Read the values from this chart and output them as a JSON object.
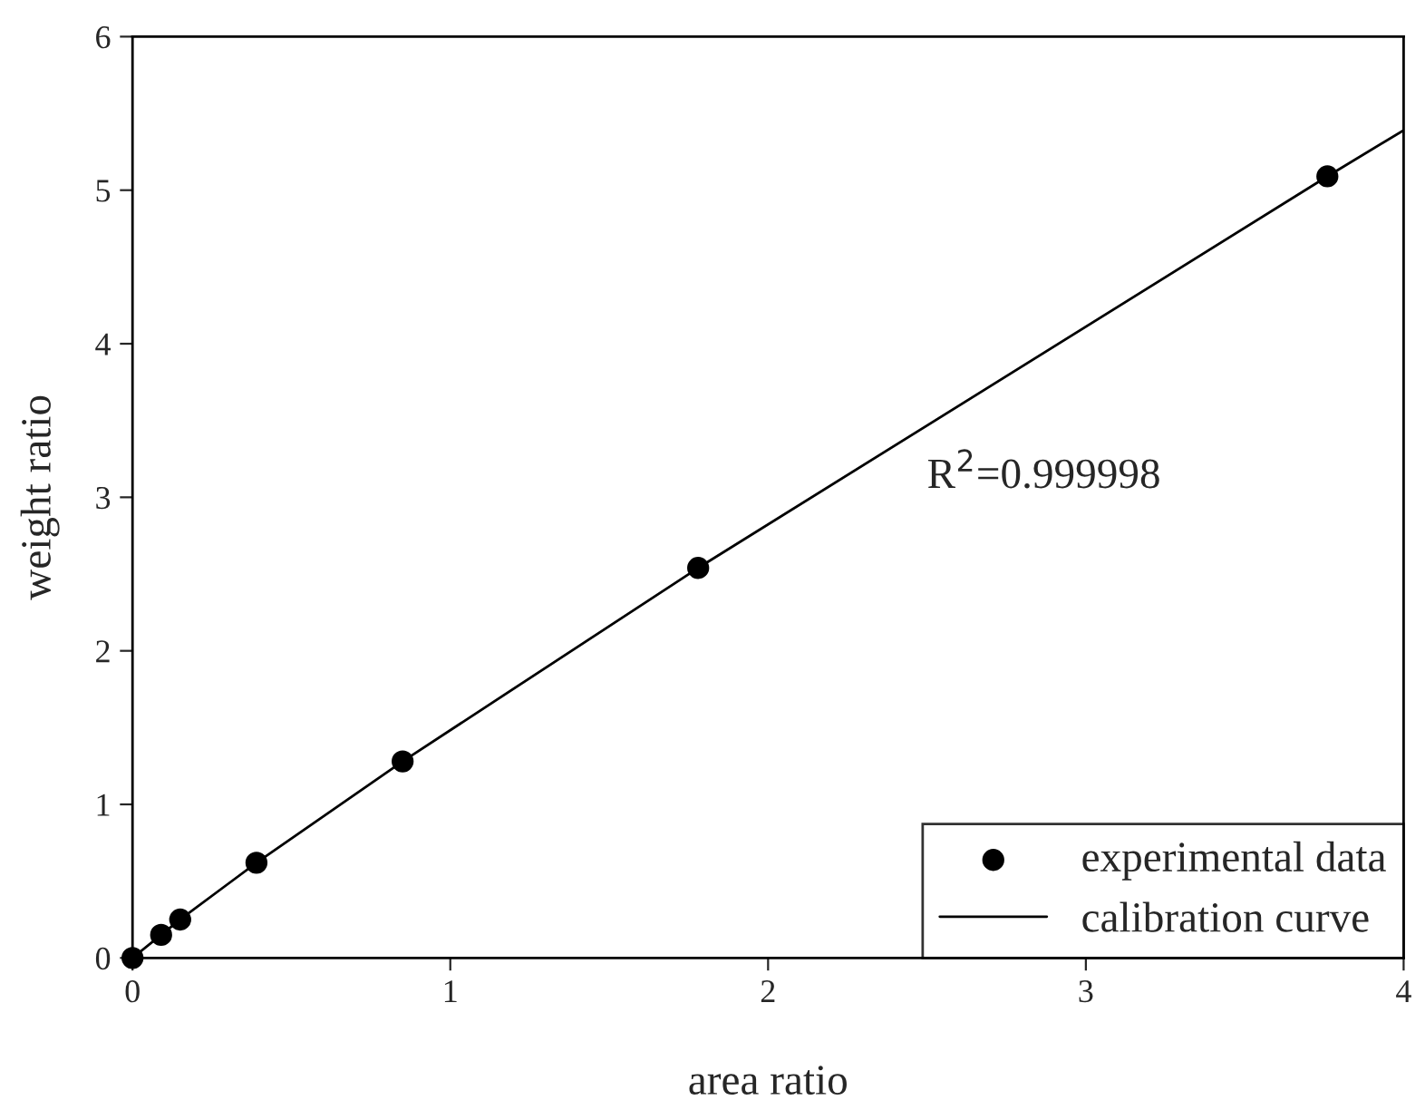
{
  "chart_data": {
    "type": "scatter",
    "xlabel": "area ratio",
    "ylabel": "weight ratio",
    "xlim": [
      0,
      4
    ],
    "ylim": [
      0,
      6
    ],
    "xticks": [
      0,
      1,
      2,
      3,
      4
    ],
    "yticks": [
      0,
      1,
      2,
      3,
      4,
      5,
      6
    ],
    "grid": false,
    "legend": "bottom right",
    "series": [
      {
        "name": "experimental data",
        "color": "#000000",
        "marker": "circle",
        "x": [
          0,
          0.09,
          0.15,
          0.39,
          0.85,
          1.78,
          3.76
        ],
        "values": [
          0,
          0.15,
          0.25,
          0.62,
          1.28,
          2.54,
          5.09
        ]
      },
      {
        "name": "calibration curve",
        "type": "line",
        "color": "#000000",
        "marker": "none",
        "line_style": "solid",
        "x": [
          0,
          0.09,
          0.15,
          0.39,
          0.85,
          1.78,
          3.76,
          4
        ],
        "values": [
          0,
          0.15,
          0.25,
          0.62,
          1.28,
          2.54,
          5.09,
          5.39
        ]
      }
    ],
    "annotations": [
      "R$^{2}$=0.999998"
    ]
  }
}
